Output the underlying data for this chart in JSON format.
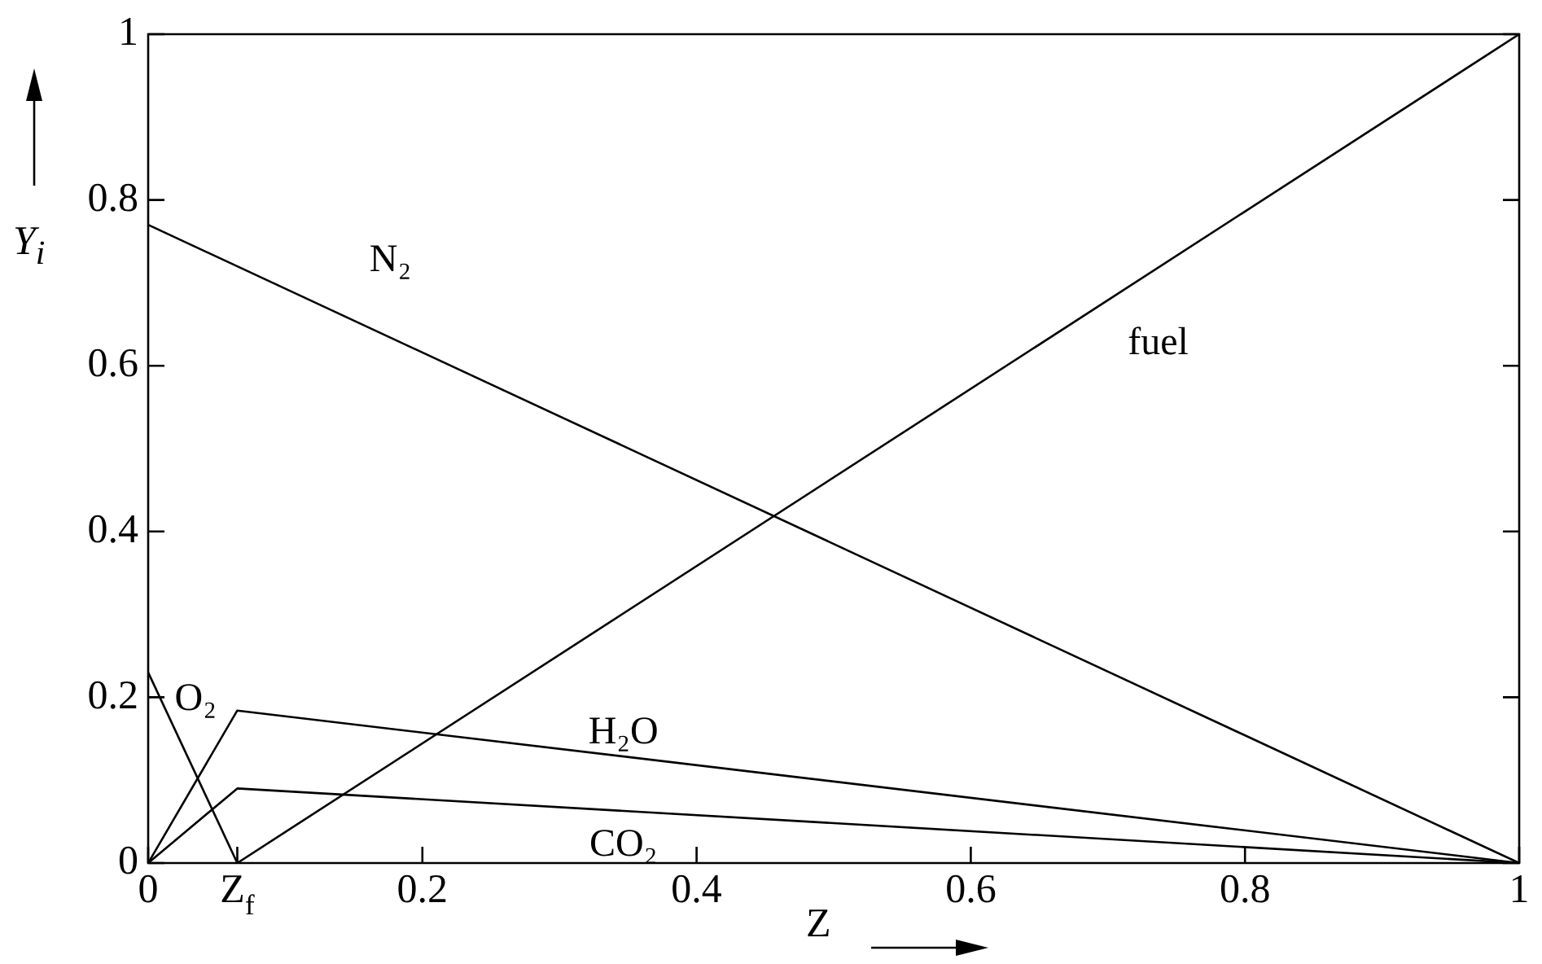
{
  "chart_data": {
    "type": "line",
    "xlabel": "Z",
    "ylabel": "Y$_{i}$",
    "xlim": [
      0,
      1
    ],
    "ylim": [
      0,
      1
    ],
    "xticks": [
      0,
      {
        "value": 0.065,
        "label": "Z$_{f}$"
      },
      0.2,
      0.4,
      0.6,
      0.8,
      1
    ],
    "yticks": [
      0,
      0.2,
      0.4,
      0.6,
      0.8,
      1
    ],
    "grid": false,
    "legend": false,
    "marker": "none",
    "line_style": "solid",
    "series": [
      {
        "name": "N₂",
        "color": "#000000",
        "x": [
          0,
          1
        ],
        "values": [
          0.77,
          0
        ]
      },
      {
        "name": "fuel",
        "color": "#000000",
        "x": [
          0.065,
          1
        ],
        "values": [
          0,
          1
        ]
      },
      {
        "name": "O₂",
        "color": "#000000",
        "x": [
          0,
          0.065
        ],
        "values": [
          0.23,
          0
        ]
      },
      {
        "name": "H₂O",
        "color": "#000000",
        "x": [
          0,
          0.065,
          1
        ],
        "values": [
          0,
          0.184,
          0
        ]
      },
      {
        "name": "CO₂",
        "color": "#000000",
        "x": [
          0,
          0.065,
          1
        ],
        "values": [
          0,
          0.09,
          0
        ]
      }
    ]
  }
}
